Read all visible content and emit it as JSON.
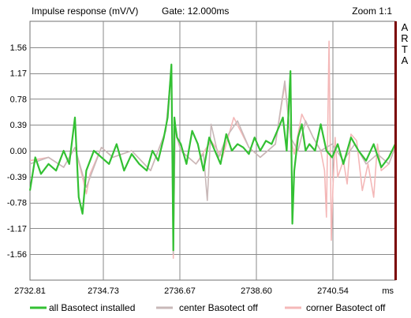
{
  "header": {
    "title": "Impulse response (mV/V)",
    "gate": "Gate: 12.000ms",
    "zoom": "Zoom 1:1",
    "brand_letters": [
      "A",
      "R",
      "T",
      "A"
    ]
  },
  "chart_data": {
    "type": "line",
    "title": "Impulse response (mV/V)",
    "xlabel": "ms",
    "ylabel": "",
    "xlim": [
      2732.81,
      2742.47
    ],
    "ylim": [
      -1.95,
      1.95
    ],
    "x_tick_labels": [
      "2732.81",
      "2734.73",
      "2736.67",
      "2738.60",
      "2740.54",
      "ms"
    ],
    "y_tick_values": [
      1.56,
      1.17,
      0.78,
      0.39,
      0.0,
      -0.39,
      -0.78,
      -1.17,
      -1.56
    ],
    "y_tick_labels": [
      "1.56",
      "1.17",
      "0.78",
      "0.39",
      "0.00",
      "-0.39",
      "-0.78",
      "-1.17",
      "-1.56"
    ],
    "grid": true,
    "legend_position": "bottom",
    "series": [
      {
        "name": "corner Basotect off",
        "color": "#f4b8b8",
        "x": [
          2732.81,
          2733.3,
          2733.7,
          2734.0,
          2734.2,
          2734.3,
          2734.4,
          2734.7,
          2735.0,
          2735.5,
          2736.0,
          2736.4,
          2736.55,
          2736.6,
          2736.65,
          2736.7,
          2736.8,
          2737.2,
          2737.6,
          2737.9,
          2738.2,
          2738.6,
          2738.9,
          2739.3,
          2739.55,
          2739.7,
          2739.8,
          2740.0,
          2740.3,
          2740.5,
          2740.6,
          2740.65,
          2740.72,
          2740.78,
          2740.82,
          2740.88,
          2740.95,
          2741.1,
          2741.2,
          2741.3,
          2741.45,
          2741.6,
          2741.75,
          2741.9,
          2742.0,
          2742.1,
          2742.3,
          2742.47
        ],
        "y": [
          -0.15,
          -0.1,
          -0.25,
          0.05,
          -0.4,
          -0.65,
          -0.35,
          0.05,
          -0.1,
          0.0,
          -0.3,
          0.3,
          1.2,
          -1.62,
          0.4,
          0.2,
          0.0,
          -0.2,
          0.15,
          -0.1,
          0.5,
          0.05,
          -0.1,
          0.1,
          1.0,
          0.2,
          -0.05,
          0.55,
          0.2,
          0.0,
          -0.3,
          -1.0,
          1.65,
          -1.35,
          -0.6,
          0.2,
          -0.4,
          -0.15,
          -0.5,
          0.25,
          0.15,
          -0.6,
          -0.2,
          -0.7,
          0.1,
          -0.3,
          -0.2,
          0.05
        ]
      },
      {
        "name": "center Basotect off",
        "color": "#c8b8b8",
        "x": [
          2732.81,
          2733.3,
          2733.7,
          2734.0,
          2734.3,
          2734.7,
          2735.0,
          2735.5,
          2736.0,
          2736.4,
          2736.55,
          2736.6,
          2736.65,
          2736.7,
          2736.8,
          2737.2,
          2737.4,
          2737.5,
          2737.6,
          2737.8,
          2738.0,
          2738.3,
          2738.6,
          2738.9,
          2739.3,
          2739.55,
          2739.7,
          2739.9,
          2740.1,
          2740.3,
          2740.5,
          2740.8,
          2741.1,
          2741.4,
          2741.7,
          2742.0,
          2742.3,
          2742.47
        ],
        "y": [
          -0.2,
          -0.1,
          -0.25,
          0.05,
          -0.55,
          0.05,
          -0.1,
          0.0,
          -0.3,
          0.3,
          1.25,
          -1.55,
          0.4,
          0.2,
          0.0,
          -0.2,
          -0.05,
          -0.75,
          0.4,
          -0.1,
          0.2,
          0.45,
          0.05,
          -0.1,
          0.1,
          1.05,
          0.2,
          0.0,
          0.45,
          0.2,
          0.0,
          0.1,
          -0.15,
          0.1,
          -0.2,
          -0.05,
          -0.2,
          0.05
        ]
      },
      {
        "name": "all Basotect installed",
        "color": "#33c033",
        "x": [
          2732.81,
          2732.95,
          2733.1,
          2733.3,
          2733.5,
          2733.7,
          2733.85,
          2734.0,
          2734.1,
          2734.2,
          2734.3,
          2734.5,
          2734.7,
          2734.9,
          2735.1,
          2735.3,
          2735.5,
          2735.7,
          2735.9,
          2736.05,
          2736.2,
          2736.35,
          2736.45,
          2736.55,
          2736.6,
          2736.63,
          2736.66,
          2736.7,
          2736.8,
          2736.95,
          2737.1,
          2737.25,
          2737.4,
          2737.55,
          2737.7,
          2737.85,
          2738.0,
          2738.15,
          2738.3,
          2738.45,
          2738.6,
          2738.75,
          2738.9,
          2739.05,
          2739.2,
          2739.35,
          2739.5,
          2739.6,
          2739.7,
          2739.75,
          2739.8,
          2739.9,
          2740.0,
          2740.1,
          2740.2,
          2740.35,
          2740.5,
          2740.65,
          2740.8,
          2740.95,
          2741.1,
          2741.3,
          2741.5,
          2741.7,
          2741.9,
          2742.1,
          2742.3,
          2742.47
        ],
        "y": [
          -0.6,
          -0.1,
          -0.35,
          -0.2,
          -0.3,
          0.0,
          -0.2,
          0.5,
          -0.7,
          -0.95,
          -0.3,
          0.0,
          -0.1,
          -0.2,
          0.1,
          -0.3,
          -0.05,
          -0.2,
          -0.3,
          0.0,
          -0.15,
          0.2,
          0.5,
          1.3,
          -1.5,
          0.5,
          0.35,
          0.2,
          0.1,
          -0.2,
          0.3,
          0.1,
          -0.3,
          0.2,
          0.0,
          -0.2,
          0.25,
          0.0,
          0.1,
          0.05,
          -0.05,
          0.2,
          0.0,
          0.15,
          0.1,
          0.3,
          0.5,
          0.0,
          1.2,
          -1.1,
          -0.3,
          0.2,
          0.4,
          0.0,
          0.1,
          0.0,
          0.4,
          0.0,
          -0.1,
          0.1,
          -0.2,
          0.2,
          0.0,
          -0.15,
          0.1,
          -0.25,
          -0.1,
          0.1
        ]
      }
    ]
  }
}
